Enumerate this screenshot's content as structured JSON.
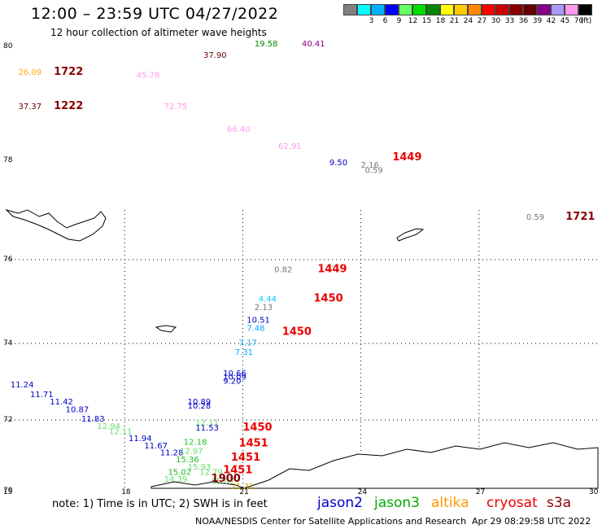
{
  "header": {
    "title": "12:00 – 23:59 UTC 04/27/2022",
    "subtitle": "12 hour collection of altimeter wave heights"
  },
  "scale": {
    "unit": "(ft)",
    "steps": [
      {
        "label": "",
        "color": "#7f7f7f"
      },
      {
        "label": "3",
        "color": "#00ffff"
      },
      {
        "label": "6",
        "color": "#00b2ff"
      },
      {
        "label": "9",
        "color": "#0000ff"
      },
      {
        "label": "12",
        "color": "#66ff66"
      },
      {
        "label": "15",
        "color": "#00dd00"
      },
      {
        "label": "18",
        "color": "#008800"
      },
      {
        "label": "21",
        "color": "#ffff00"
      },
      {
        "label": "24",
        "color": "#ffcc00"
      },
      {
        "label": "27",
        "color": "#ff8800"
      },
      {
        "label": "30",
        "color": "#ff0000"
      },
      {
        "label": "33",
        "color": "#cc0000"
      },
      {
        "label": "36",
        "color": "#880000"
      },
      {
        "label": "39",
        "color": "#660000"
      },
      {
        "label": "42",
        "color": "#880088"
      },
      {
        "label": "45",
        "color": "#aa99ff"
      },
      {
        "label": "70",
        "color": "#ff99ee"
      },
      {
        "label": "",
        "color": "#000000"
      }
    ]
  },
  "axes": {
    "lat_labels": [
      "80",
      "78",
      "76",
      "74",
      "72",
      "70"
    ],
    "lon_labels": [
      "15",
      "18",
      "21",
      "24",
      "27",
      "30"
    ]
  },
  "passes": [
    {
      "time": "1722",
      "lon": 16.2,
      "lat": 79.5,
      "color": "#880000"
    },
    {
      "time": "1222",
      "lon": 16.2,
      "lat": 78.9,
      "color": "#880000"
    },
    {
      "time": "1449",
      "lon": 24.8,
      "lat": 78.0,
      "color": "#ee0000"
    },
    {
      "time": "1721",
      "lon": 29.2,
      "lat": 76.8,
      "color": "#880000"
    },
    {
      "time": "1449",
      "lon": 22.9,
      "lat": 75.7,
      "color": "#ee0000"
    },
    {
      "time": "1450",
      "lon": 22.8,
      "lat": 75.0,
      "color": "#ee0000"
    },
    {
      "time": "1450",
      "lon": 22.0,
      "lat": 74.2,
      "color": "#ee0000"
    },
    {
      "time": "1450",
      "lon": 21.0,
      "lat": 71.7,
      "color": "#ee0000"
    },
    {
      "time": "1451",
      "lon": 20.9,
      "lat": 71.25,
      "color": "#ee0000"
    },
    {
      "time": "1451",
      "lon": 20.7,
      "lat": 70.85,
      "color": "#ee0000"
    },
    {
      "time": "1451",
      "lon": 20.5,
      "lat": 70.5,
      "color": "#ee0000"
    },
    {
      "time": "1900",
      "lon": 20.2,
      "lat": 70.25,
      "color": "#880000"
    }
  ],
  "readings": [
    {
      "v": "26.09",
      "lon": 15.3,
      "lat": 79.5,
      "color": "#ffaa00"
    },
    {
      "v": "37.37",
      "lon": 15.3,
      "lat": 78.9,
      "color": "#660000"
    },
    {
      "v": "45.78",
      "lon": 18.3,
      "lat": 79.45,
      "color": "#ff99ee"
    },
    {
      "v": "37.90",
      "lon": 20.0,
      "lat": 79.8,
      "color": "#660000"
    },
    {
      "v": "19.58",
      "lon": 21.3,
      "lat": 80.15,
      "color": "#008800"
    },
    {
      "v": "40.41",
      "lon": 22.5,
      "lat": 80.35,
      "color": "#880088"
    },
    {
      "v": "72.75",
      "lon": 19.0,
      "lat": 78.9,
      "color": "#ff99ee"
    },
    {
      "v": "66.40",
      "lon": 20.6,
      "lat": 78.5,
      "color": "#ff99ee"
    },
    {
      "v": "62.91",
      "lon": 21.9,
      "lat": 78.2,
      "color": "#ff99ee"
    },
    {
      "v": "9.50",
      "lon": 23.2,
      "lat": 77.9,
      "color": "#0000cc"
    },
    {
      "v": "2.16",
      "lon": 24.0,
      "lat": 77.85,
      "color": "#777777"
    },
    {
      "v": "0.59",
      "lon": 24.1,
      "lat": 77.75,
      "color": "#777777"
    },
    {
      "v": "0.59",
      "lon": 28.2,
      "lat": 76.8,
      "color": "#777777"
    },
    {
      "v": "0.82",
      "lon": 21.8,
      "lat": 75.7,
      "color": "#777777"
    },
    {
      "v": "4.44",
      "lon": 21.4,
      "lat": 75.0,
      "color": "#00ccff"
    },
    {
      "v": "2.13",
      "lon": 21.3,
      "lat": 74.8,
      "color": "#777777"
    },
    {
      "v": "10.51",
      "lon": 21.1,
      "lat": 74.5,
      "color": "#0000cc"
    },
    {
      "v": "7.48",
      "lon": 21.1,
      "lat": 74.3,
      "color": "#00aaff"
    },
    {
      "v": "7.17",
      "lon": 20.9,
      "lat": 73.95,
      "color": "#00aaff"
    },
    {
      "v": "7.31",
      "lon": 20.8,
      "lat": 73.7,
      "color": "#00aaff"
    },
    {
      "v": "10.66",
      "lon": 20.5,
      "lat": 73.15,
      "color": "#0000cc"
    },
    {
      "v": "10.09",
      "lon": 20.5,
      "lat": 73.05,
      "color": "#0000cc"
    },
    {
      "v": "9.20",
      "lon": 20.5,
      "lat": 72.95,
      "color": "#0000cc"
    },
    {
      "v": "10.89",
      "lon": 19.6,
      "lat": 72.4,
      "color": "#0000cc"
    },
    {
      "v": "10.28",
      "lon": 19.6,
      "lat": 72.3,
      "color": "#0000cc"
    },
    {
      "v": "11.24",
      "lon": 15.1,
      "lat": 72.85,
      "color": "#0000cc"
    },
    {
      "v": "11.71",
      "lon": 15.6,
      "lat": 72.6,
      "color": "#0000cc"
    },
    {
      "v": "11.42",
      "lon": 16.1,
      "lat": 72.4,
      "color": "#0000cc"
    },
    {
      "v": "10.87",
      "lon": 16.5,
      "lat": 72.2,
      "color": "#0000cc"
    },
    {
      "v": "11.83",
      "lon": 16.9,
      "lat": 71.95,
      "color": "#0000cc"
    },
    {
      "v": "12.94",
      "lon": 17.3,
      "lat": 71.75,
      "color": "#66dd66"
    },
    {
      "v": "12.11",
      "lon": 17.6,
      "lat": 71.6,
      "color": "#66dd66"
    },
    {
      "v": "11.94",
      "lon": 18.1,
      "lat": 71.4,
      "color": "#0000cc"
    },
    {
      "v": "11.67",
      "lon": 18.5,
      "lat": 71.2,
      "color": "#0000cc"
    },
    {
      "v": "11.28",
      "lon": 18.9,
      "lat": 71.0,
      "color": "#0000cc"
    },
    {
      "v": "12.11",
      "lon": 19.8,
      "lat": 71.85,
      "color": "#66dd66"
    },
    {
      "v": "11.53",
      "lon": 19.8,
      "lat": 71.7,
      "color": "#0000cc"
    },
    {
      "v": "12.18",
      "lon": 19.5,
      "lat": 71.3,
      "color": "#22bb22"
    },
    {
      "v": "12.97",
      "lon": 19.4,
      "lat": 71.05,
      "color": "#66dd66"
    },
    {
      "v": "15.36",
      "lon": 19.3,
      "lat": 70.8,
      "color": "#22bb22"
    },
    {
      "v": "15.93",
      "lon": 19.6,
      "lat": 70.6,
      "color": "#66dd66"
    },
    {
      "v": "12.79",
      "lon": 19.9,
      "lat": 70.45,
      "color": "#66dd66"
    },
    {
      "v": "15.02",
      "lon": 19.1,
      "lat": 70.45,
      "color": "#22bb22"
    },
    {
      "v": "14.39",
      "lon": 19.0,
      "lat": 70.25,
      "color": "#66dd66"
    },
    {
      "v": "15.07",
      "lon": 20.2,
      "lat": 70.2,
      "color": "#66dd66"
    },
    {
      "v": "21.31",
      "lon": 20.7,
      "lat": 70.05,
      "color": "#ccaa00"
    }
  ],
  "footer": {
    "note": "note:  1) Time is in UTC; 2) SWH is in feet",
    "legend": [
      {
        "name": "jason2",
        "color": "#0000cc"
      },
      {
        "name": "jason3",
        "color": "#00aa00"
      },
      {
        "name": "altika",
        "color": "#ff9900"
      },
      {
        "name": "cryosat",
        "color": "#ee0000"
      },
      {
        "name": "s3a",
        "color": "#880000"
      }
    ],
    "credit": "NOAA/NESDIS Center for Satellite Applications and Research",
    "timestamp": "Apr 29 08:29:58 UTC 2022"
  }
}
